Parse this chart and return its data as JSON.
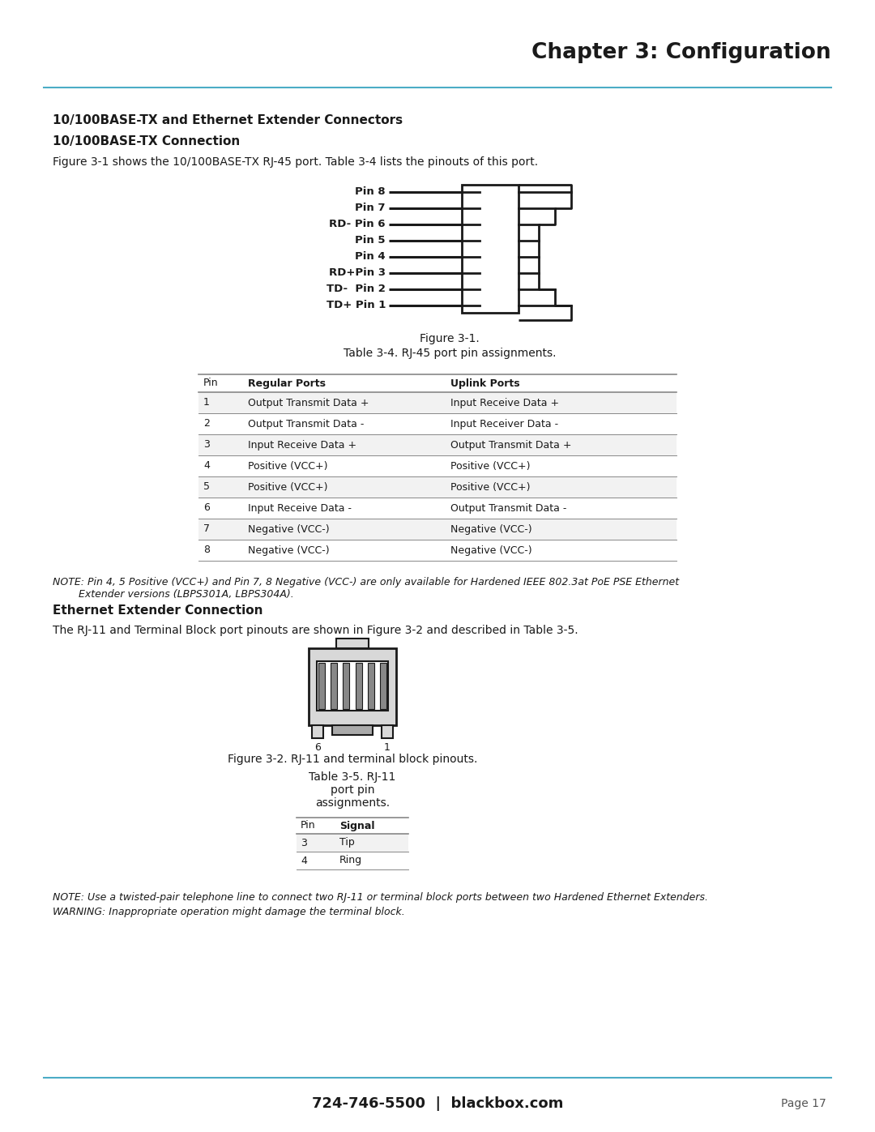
{
  "bg_color": "#ffffff",
  "accent_color": "#4BACC6",
  "chapter_title": "Chapter 3: Configuration",
  "section1_title": "10/100BASE-TX and Ethernet Extender Connectors",
  "section2_title": "10/100BASE-TX Connection",
  "para1": "Figure 3-1 shows the 10/100BASE-TX RJ-45 port. Table 3-4 lists the pinouts of this port.",
  "fig1_caption_line1": "Figure 3-1.",
  "fig1_caption_line2": "Table 3-4. RJ-45 port pin assignments.",
  "rj45_pin_labels": [
    "Pin 8",
    "Pin 7",
    "RD- Pin 6",
    "Pin 5",
    "Pin 4",
    "RD+Pin 3",
    "TD-  Pin 2",
    "TD+ Pin 1"
  ],
  "table1_headers": [
    "Pin",
    "Regular Ports",
    "Uplink Ports"
  ],
  "table1_rows": [
    [
      "1",
      "Output Transmit Data +",
      "Input Receive Data +"
    ],
    [
      "2",
      "Output Transmit Data -",
      "Input Receiver Data -"
    ],
    [
      "3",
      "Input Receive Data +",
      "Output Transmit Data +"
    ],
    [
      "4",
      "Positive (VCC+)",
      "Positive (VCC+)"
    ],
    [
      "5",
      "Positive (VCC+)",
      "Positive (VCC+)"
    ],
    [
      "6",
      "Input Receive Data -",
      "Output Transmit Data -"
    ],
    [
      "7",
      "Negative (VCC-)",
      "Negative (VCC-)"
    ],
    [
      "8",
      "Negative (VCC-)",
      "Negative (VCC-)"
    ]
  ],
  "note1_line1": "NOTE: Pin 4, 5 Positive (VCC+) and Pin 7, 8 Negative (VCC-) are only available for Hardened IEEE 802.3at PoE PSE Ethernet",
  "note1_line2": "        Extender versions (LBPS301A, LBPS304A).",
  "section3_title": "Ethernet Extender Connection",
  "para2": "The RJ-11 and Terminal Block port pinouts are shown in Figure 3-2 and described in Table 3-5.",
  "fig2_caption": "Figure 3-2. RJ-11 and terminal block pinouts.",
  "table2_caption_line1": "Table 3-5. RJ-11",
  "table2_caption_line2": "port pin",
  "table2_caption_line3": "assignments.",
  "table2_headers": [
    "Pin",
    "Signal"
  ],
  "table2_rows": [
    [
      "3",
      "Tip"
    ],
    [
      "4",
      "Ring"
    ]
  ],
  "note2": "NOTE: Use a twisted-pair telephone line to connect two RJ-11 or terminal block ports between two Hardened Ethernet Extenders.",
  "warning": "WARNING: Inappropriate operation might damage the terminal block.",
  "footer_phone": "724-746-5500  |  blackbox.com",
  "footer_page": "Page 17"
}
